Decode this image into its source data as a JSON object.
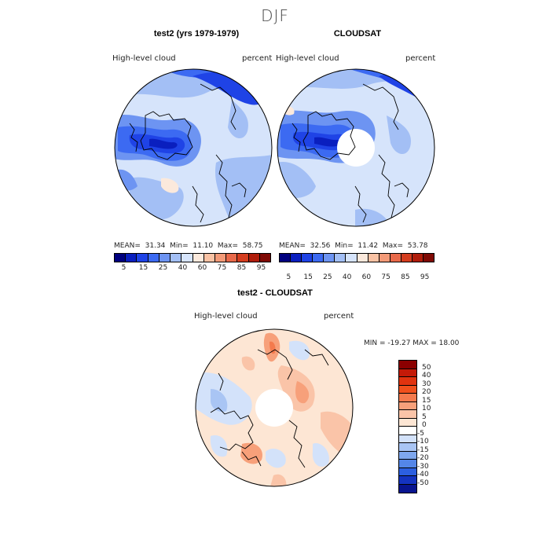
{
  "figure_title": "DJF",
  "panels": [
    {
      "title": "test2 (yrs 1979-1979)",
      "variable": "High-level cloud",
      "units": "percent",
      "mean_label": "MEAN=",
      "mean": "31.34",
      "min_label": "Min=",
      "min": "11.10",
      "max_label": "Max=",
      "max": "58.75"
    },
    {
      "title": "CLOUDSAT",
      "variable": "High-level cloud",
      "units": "percent",
      "mean_label": "MEAN=",
      "mean": "32.56",
      "min_label": "Min=",
      "min": "11.42",
      "max_label": "Max=",
      "max": "53.78"
    },
    {
      "title": "test2 - CLOUDSAT",
      "variable": "High-level cloud",
      "units": "percent",
      "minmax_text": "MIN = -19.27 MAX =   18.00"
    }
  ],
  "colorbar_abs": {
    "ticks": [
      "5",
      "15",
      "25",
      "40",
      "60",
      "75",
      "85",
      "95"
    ],
    "colors": [
      "#00007f",
      "#0a1fbf",
      "#1f43e6",
      "#3c6af2",
      "#6d94f2",
      "#a3bff5",
      "#d6e4fb",
      "#fbe9dc",
      "#f9c2a4",
      "#f39a78",
      "#e8694a",
      "#d43d1f",
      "#b01d0b",
      "#7f0a05"
    ]
  },
  "colorbar_diff": {
    "ticks": [
      "50",
      "40",
      "30",
      "20",
      "15",
      "10",
      "5",
      "0",
      "-5",
      "-10",
      "-15",
      "-20",
      "-30",
      "-40",
      "-50"
    ],
    "colors": [
      "#8b0000",
      "#c41a08",
      "#e0330f",
      "#f0501c",
      "#f47a4d",
      "#f7a07a",
      "#fac4a8",
      "#fde6d4",
      "#ffffff",
      "#d3e2fa",
      "#a9c5f4",
      "#7ea7ee",
      "#5486e8",
      "#2c5fe0",
      "#1433c0",
      "#08148f"
    ]
  },
  "chart_data": [
    {
      "type": "heatmap",
      "title": "test2 (yrs 1979-1979)",
      "subtitle": "High-level cloud (percent), DJF, north polar stereographic",
      "stats": {
        "mean": 31.34,
        "min": 11.1,
        "max": 58.75
      },
      "levels": [
        5,
        15,
        25,
        40,
        60,
        75,
        85,
        95
      ]
    },
    {
      "type": "heatmap",
      "title": "CLOUDSAT",
      "subtitle": "High-level cloud (percent), DJF, north polar stereographic",
      "stats": {
        "mean": 32.56,
        "min": 11.42,
        "max": 53.78
      },
      "levels": [
        5,
        15,
        25,
        40,
        60,
        75,
        85,
        95
      ]
    },
    {
      "type": "heatmap",
      "title": "test2 - CLOUDSAT",
      "subtitle": "High-level cloud difference (percent)",
      "stats": {
        "min": -19.27,
        "max": 18.0
      },
      "levels": [
        -50,
        -40,
        -30,
        -20,
        -15,
        -10,
        -5,
        0,
        5,
        10,
        15,
        20,
        30,
        40,
        50
      ]
    }
  ]
}
